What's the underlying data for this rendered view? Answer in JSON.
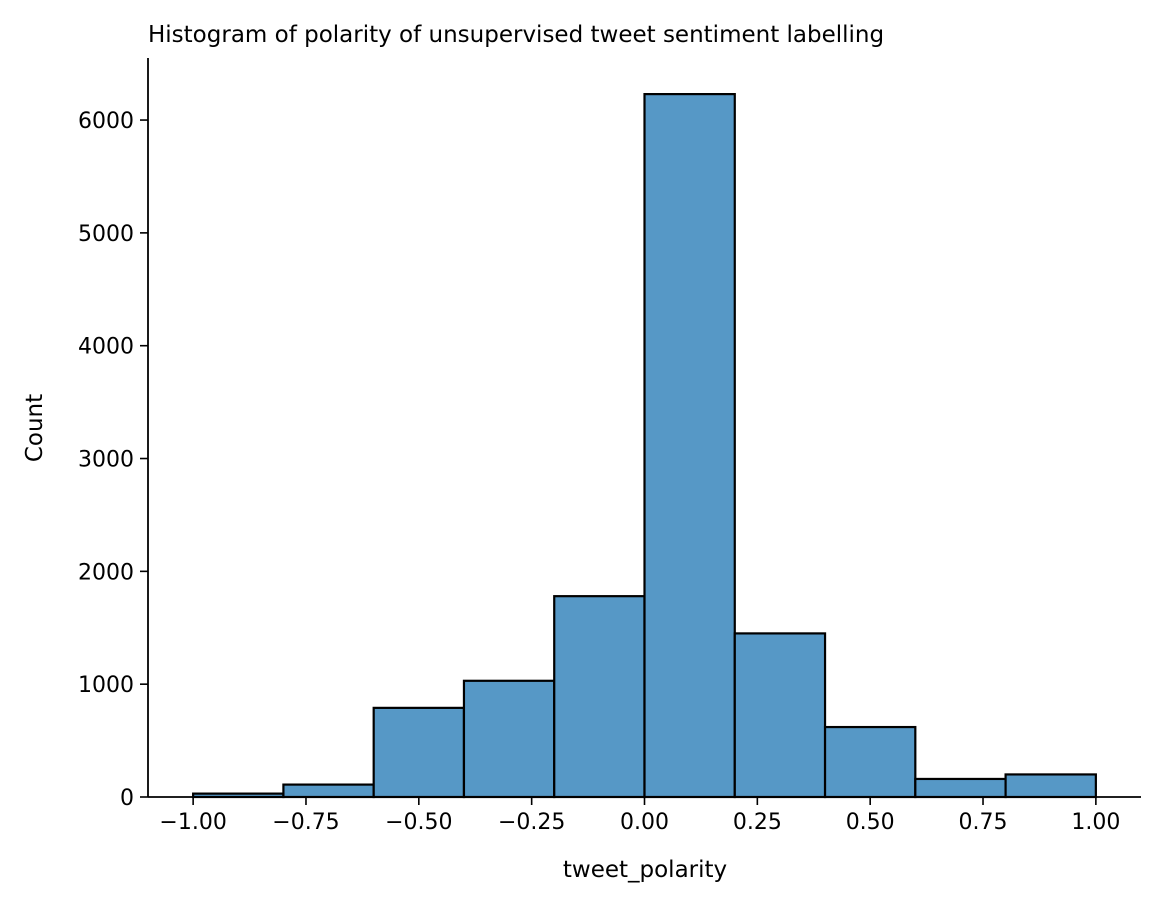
{
  "chart_data": {
    "type": "bar",
    "title": "Histogram of polarity of unsupervised tweet sentiment labelling",
    "xlabel": "tweet_polarity",
    "ylabel": "Count",
    "xlim": [
      -1.1,
      1.1
    ],
    "ylim": [
      0,
      6550
    ],
    "xticks": [
      -1.0,
      -0.75,
      -0.5,
      -0.25,
      0.0,
      0.25,
      0.5,
      0.75,
      1.0
    ],
    "xtick_labels": [
      "−1.00",
      "−0.75",
      "−0.50",
      "−0.25",
      "0.00",
      "0.25",
      "0.50",
      "0.75",
      "1.00"
    ],
    "yticks": [
      0,
      1000,
      2000,
      3000,
      4000,
      5000,
      6000
    ],
    "ytick_labels": [
      "0",
      "1000",
      "2000",
      "3000",
      "4000",
      "5000",
      "6000"
    ],
    "bin_edges": [
      -1.0,
      -0.8,
      -0.6,
      -0.4,
      -0.2,
      0.0,
      0.2,
      0.4,
      0.6,
      0.8,
      1.0
    ],
    "values": [
      30,
      110,
      790,
      1030,
      1780,
      6230,
      1450,
      620,
      160,
      200
    ],
    "grid": false,
    "bar_color": "#5698c6",
    "edge_color": "#000000"
  }
}
